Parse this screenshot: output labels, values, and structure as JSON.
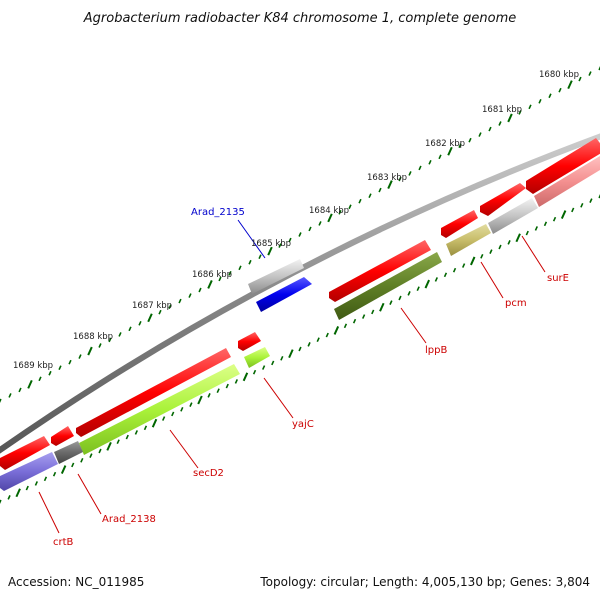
{
  "title": "Agrobacterium radiobacter K84 chromosome 1, complete genome",
  "footer": {
    "accession": "Accession: NC_011985",
    "summary": "Topology: circular; Length: 4,005,130 bp; Genes: 3,804"
  },
  "scale_ticks": [
    {
      "kb": 1680,
      "label": "1680 kbp"
    },
    {
      "kb": 1681,
      "label": "1681 kbp"
    },
    {
      "kb": 1682,
      "label": "1682 kbp"
    },
    {
      "kb": 1683,
      "label": "1683 kbp"
    },
    {
      "kb": 1684,
      "label": "1684 kbp"
    },
    {
      "kb": 1685,
      "label": "1685 kbp"
    },
    {
      "kb": 1686,
      "label": "1686 kbp"
    },
    {
      "kb": 1687,
      "label": "1687 kbp"
    },
    {
      "kb": 1688,
      "label": "1688 kbp"
    },
    {
      "kb": 1689,
      "label": "1689 kbp"
    }
  ],
  "genes": [
    {
      "name": "Arad_2135",
      "strand": "forward",
      "color": "#0000cc"
    },
    {
      "name": "surE",
      "strand": "reverse",
      "color": "#cc0000"
    },
    {
      "name": "pcm",
      "strand": "reverse",
      "color": "#cc0000"
    },
    {
      "name": "lppB",
      "strand": "reverse",
      "color": "#cc0000"
    },
    {
      "name": "yajC",
      "strand": "reverse",
      "color": "#cc0000"
    },
    {
      "name": "secD2",
      "strand": "reverse",
      "color": "#cc0000"
    },
    {
      "name": "Arad_2138",
      "strand": "reverse",
      "color": "#cc0000"
    },
    {
      "name": "crtB",
      "strand": "reverse",
      "color": "#cc0000"
    }
  ],
  "colors": {
    "cds": "#ff0000",
    "backbone": "#808080",
    "tick": "#006600",
    "forward_label": "#0000cc",
    "reverse_label": "#cc0000"
  }
}
